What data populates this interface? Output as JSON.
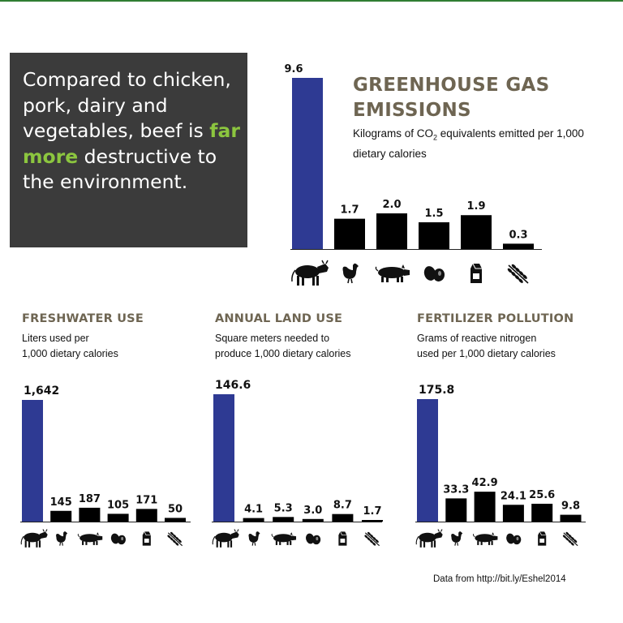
{
  "colors": {
    "beef_bar": "#2e3a93",
    "other_bar": "#000000",
    "title": "#6e6552",
    "highlight": "#8cc63f",
    "top_line": "#2f7d32"
  },
  "callout": {
    "before": "Compared to chicken, pork, dairy and vegetables, beef is ",
    "highlight": "far more",
    "after": " destructive to the environment."
  },
  "source": "Data from http://bit.ly/Eshel2014",
  "icons": [
    "cow-icon",
    "chicken-icon",
    "pig-icon",
    "eggs-icon",
    "milk-carton-icon",
    "wheat-icon"
  ],
  "chart_data": [
    {
      "type": "bar",
      "title": "GREENHOUSE GAS EMISSIONS",
      "subtitle_pre": "Kilograms of CO",
      "subtitle_sub": "2",
      "subtitle_post": " equivalents emitted per 1,000 dietary calories",
      "categories": [
        "beef",
        "chicken",
        "pork",
        "eggs",
        "dairy",
        "vegetables"
      ],
      "values": [
        9.6,
        1.7,
        2.0,
        1.5,
        1.9,
        0.3
      ],
      "labels": [
        "9.6",
        "1.7",
        "2.0",
        "1.5",
        "1.9",
        "0.3"
      ]
    },
    {
      "type": "bar",
      "title": "FRESHWATER USE",
      "subtitle": [
        "Liters used per",
        "1,000 dietary calories"
      ],
      "categories": [
        "beef",
        "chicken",
        "pork",
        "eggs",
        "dairy",
        "vegetables"
      ],
      "values": [
        1642,
        145,
        187,
        105,
        171,
        50
      ],
      "labels": [
        "1,642",
        "145",
        "187",
        "105",
        "171",
        "50"
      ]
    },
    {
      "type": "bar",
      "title": "ANNUAL LAND USE",
      "subtitle": [
        "Square meters needed to",
        "produce 1,000 dietary calories"
      ],
      "categories": [
        "beef",
        "chicken",
        "pork",
        "eggs",
        "dairy",
        "vegetables"
      ],
      "values": [
        146.6,
        4.1,
        5.3,
        3.0,
        8.7,
        1.7
      ],
      "labels": [
        "146.6",
        "4.1",
        "5.3",
        "3.0",
        "8.7",
        "1.7"
      ]
    },
    {
      "type": "bar",
      "title": "FERTILIZER POLLUTION",
      "subtitle": [
        "Grams of reactive nitrogen",
        "used per 1,000 dietary calories"
      ],
      "categories": [
        "beef",
        "chicken",
        "pork",
        "eggs",
        "dairy",
        "vegetables"
      ],
      "values": [
        175.8,
        33.3,
        42.9,
        24.1,
        25.6,
        9.8
      ],
      "labels": [
        "175.8",
        "33.3",
        "42.9",
        "24.1",
        "25.6",
        "9.8"
      ]
    }
  ]
}
